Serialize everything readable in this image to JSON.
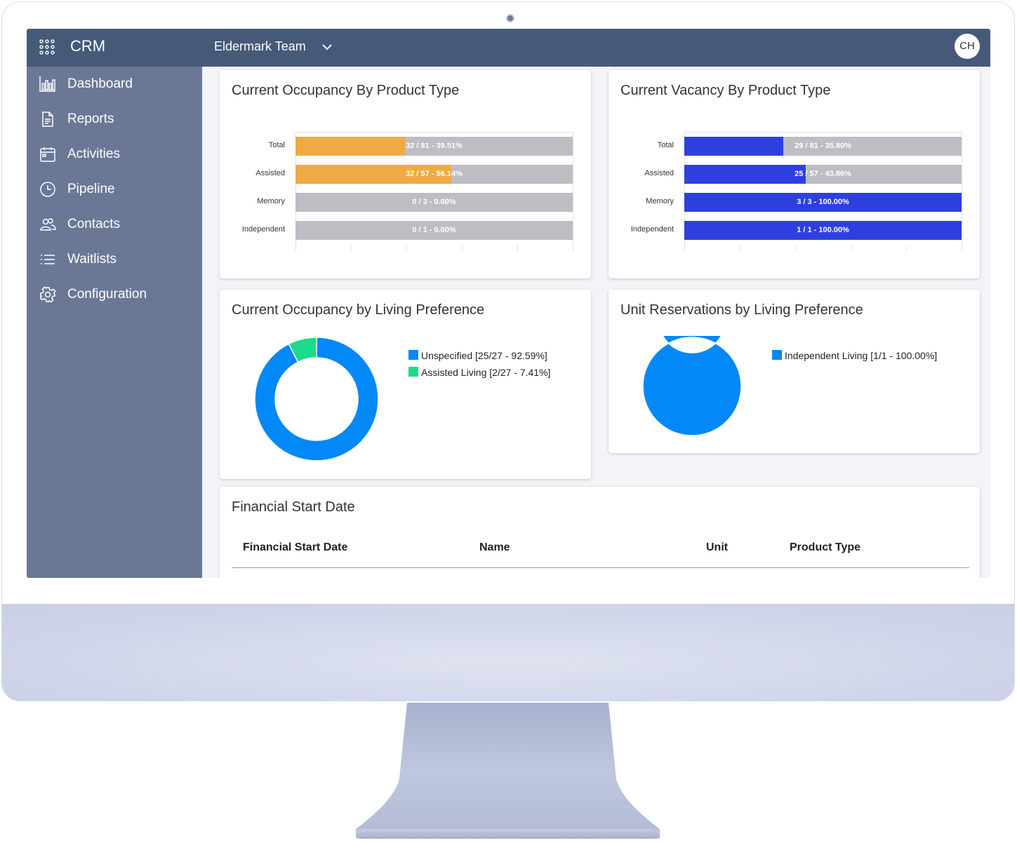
{
  "topbar": {
    "app_name": "CRM",
    "team": "Eldermark Team",
    "avatar_initials": "CH"
  },
  "sidebar": {
    "items": [
      {
        "label": "Dashboard",
        "icon": "bar-chart-icon"
      },
      {
        "label": "Reports",
        "icon": "document-icon"
      },
      {
        "label": "Activities",
        "icon": "calendar-icon"
      },
      {
        "label": "Pipeline",
        "icon": "clock-icon"
      },
      {
        "label": "Contacts",
        "icon": "people-icon"
      },
      {
        "label": "Waitlists",
        "icon": "list-icon"
      },
      {
        "label": "Configuration",
        "icon": "gear-icon"
      }
    ]
  },
  "colors": {
    "occupancy": "#eeaa44",
    "vacancy": "#2e3fdf",
    "track": "#bdbec3",
    "unspecified": "#0288f7",
    "assisted_living": "#1bdc8c",
    "topbar": "#475979",
    "sidebar": "#6a7896"
  },
  "chart_data": [
    {
      "type": "bar",
      "title": "Current Occupancy By Product Type",
      "categories": [
        "Total",
        "Assisted",
        "Memory",
        "Independent"
      ],
      "values": [
        39.51,
        56.14,
        0.0,
        0.0
      ],
      "labels": [
        "32 / 81 - 39.51%",
        "32 / 57 - 56.14%",
        "0 / 3 - 0.00%",
        "0 / 1 - 0.00%"
      ],
      "color": "#eeaa44"
    },
    {
      "type": "bar",
      "title": "Current Vacancy By Product Type",
      "categories": [
        "Total",
        "Assisted",
        "Memory",
        "Independent"
      ],
      "values": [
        35.8,
        43.86,
        100.0,
        100.0
      ],
      "labels": [
        "29 / 81 - 35.80%",
        "25 / 57 - 43.86%",
        "3 / 3 - 100.00%",
        "1 / 1 - 100.00%"
      ],
      "color": "#2e3fdf"
    },
    {
      "type": "pie",
      "title": "Current Occupancy by Living Preference",
      "slices": [
        {
          "name": "Unspecified",
          "value": 25,
          "label": "Unspecified [25/27 - 92.59%]",
          "color": "#0288f7"
        },
        {
          "name": "Assisted Living",
          "value": 2,
          "label": "Assisted Living [2/27 - 7.41%]",
          "color": "#1bdc8c"
        }
      ]
    },
    {
      "type": "pie",
      "title": "Unit Reservations by Living Preference",
      "slices": [
        {
          "name": "Independent Living",
          "value": 1,
          "label": "Independent Living [1/1 - 100.00%]",
          "color": "#0288f7"
        }
      ]
    }
  ],
  "financial": {
    "title": "Financial Start Date",
    "columns": [
      "Financial Start Date",
      "Name",
      "Unit",
      "Product Type"
    ]
  }
}
